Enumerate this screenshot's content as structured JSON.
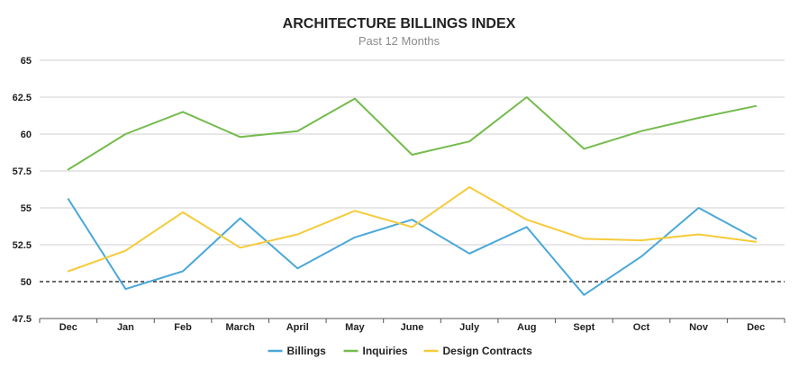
{
  "chart_data": {
    "type": "line",
    "title": "ARCHITECTURE BILLINGS INDEX",
    "subtitle": "Past 12 Months",
    "categories": [
      "Dec",
      "Jan",
      "Feb",
      "March",
      "April",
      "May",
      "June",
      "July",
      "Aug",
      "Sept",
      "Oct",
      "Nov",
      "Dec"
    ],
    "yticks": [
      "47.5",
      "50",
      "52.5",
      "55",
      "57.5",
      "60",
      "62.5",
      "65"
    ],
    "ylim": [
      47.5,
      65
    ],
    "reference_line": 50,
    "grid": true,
    "legend_position": "bottom",
    "series": [
      {
        "name": "Billings",
        "color": "#4aa8d8",
        "values": [
          55.6,
          49.5,
          50.7,
          54.3,
          50.9,
          53.0,
          54.2,
          51.9,
          53.7,
          49.1,
          51.7,
          55.0,
          52.9
        ]
      },
      {
        "name": "Inquiries",
        "color": "#74bb4d",
        "values": [
          57.6,
          60.0,
          61.5,
          59.8,
          60.2,
          62.4,
          58.6,
          59.5,
          62.5,
          59.0,
          60.2,
          61.1,
          61.9
        ]
      },
      {
        "name": "Design Contracts",
        "color": "#f6cb3a",
        "values": [
          50.7,
          52.1,
          54.7,
          52.3,
          53.2,
          54.8,
          53.7,
          56.4,
          54.2,
          52.9,
          52.8,
          53.2,
          52.7
        ]
      }
    ]
  }
}
